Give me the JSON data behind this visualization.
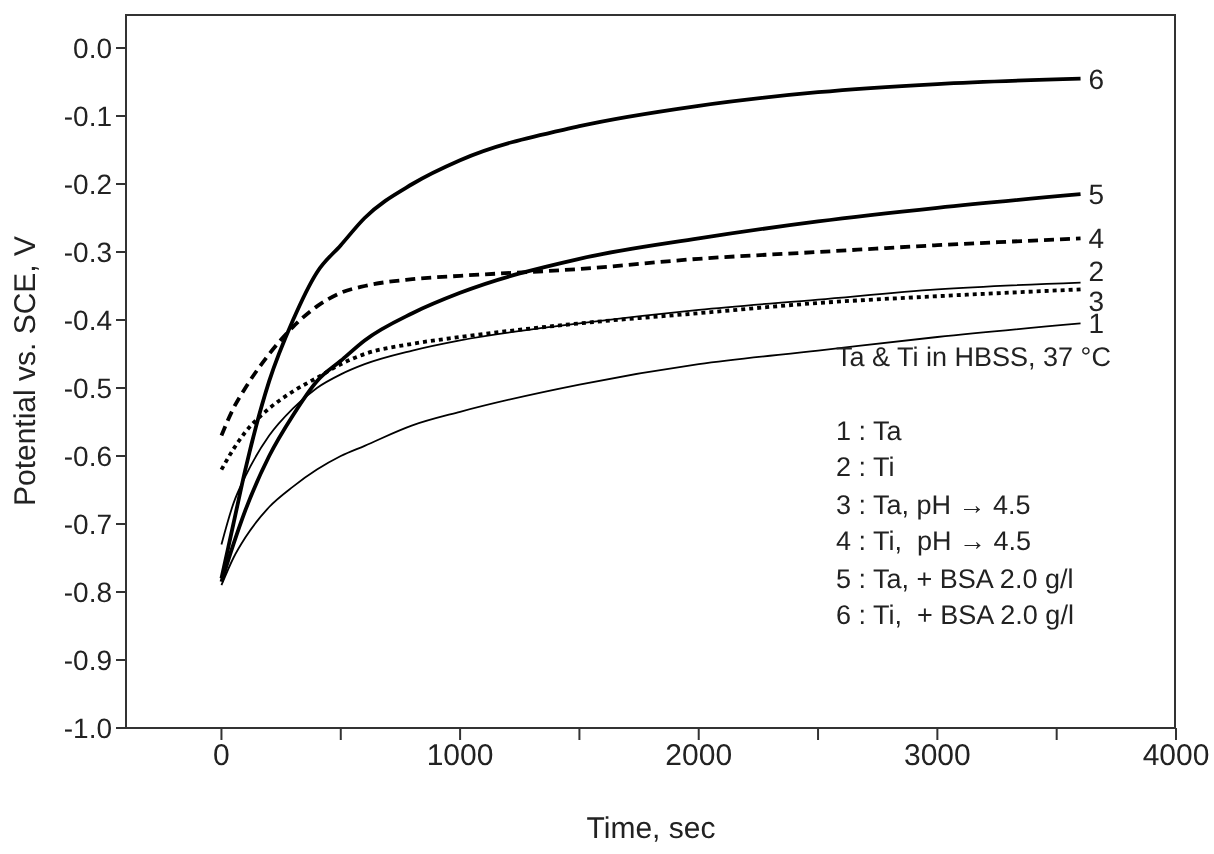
{
  "chart_data": {
    "type": "line",
    "xlabel": "Time, sec",
    "ylabel": "Potential vs. SCE, V",
    "x": [
      0,
      50,
      100,
      200,
      300,
      400,
      500,
      600,
      800,
      1000,
      1500,
      2000,
      2500,
      3000,
      3600
    ],
    "series": [
      {
        "name": "1",
        "color": "#000000",
        "line_style": "solid",
        "values": [
          -0.79,
          -0.75,
          -0.72,
          -0.675,
          -0.645,
          -0.62,
          -0.6,
          -0.585,
          -0.555,
          -0.535,
          -0.495,
          -0.465,
          -0.445,
          -0.425,
          -0.405
        ]
      },
      {
        "name": "2",
        "color": "#000000",
        "line_style": "solid",
        "values": [
          -0.73,
          -0.67,
          -0.63,
          -0.57,
          -0.53,
          -0.5,
          -0.48,
          -0.465,
          -0.445,
          -0.43,
          -0.405,
          -0.385,
          -0.37,
          -0.355,
          -0.345
        ]
      },
      {
        "name": "3",
        "color": "#000000",
        "line_style": "dotted",
        "values": [
          -0.62,
          -0.59,
          -0.565,
          -0.53,
          -0.505,
          -0.485,
          -0.465,
          -0.45,
          -0.435,
          -0.425,
          -0.405,
          -0.39,
          -0.375,
          -0.365,
          -0.355
        ]
      },
      {
        "name": "4",
        "color": "#000000",
        "line_style": "dashed",
        "values": [
          -0.57,
          -0.53,
          -0.5,
          -0.45,
          -0.41,
          -0.38,
          -0.36,
          -0.35,
          -0.34,
          -0.335,
          -0.325,
          -0.31,
          -0.3,
          -0.29,
          -0.28
        ]
      },
      {
        "name": "5",
        "color": "#000000",
        "line_style": "solid",
        "values": [
          -0.785,
          -0.73,
          -0.68,
          -0.6,
          -0.54,
          -0.49,
          -0.46,
          -0.43,
          -0.39,
          -0.36,
          -0.31,
          -0.28,
          -0.255,
          -0.235,
          -0.215
        ]
      },
      {
        "name": "6",
        "color": "#000000",
        "line_style": "solid",
        "values": [
          -0.78,
          -0.7,
          -0.62,
          -0.49,
          -0.4,
          -0.33,
          -0.29,
          -0.25,
          -0.2,
          -0.165,
          -0.115,
          -0.085,
          -0.065,
          -0.053,
          -0.045
        ]
      }
    ],
    "xlim": [
      -400,
      4000
    ],
    "xticks": [
      0,
      {
        "value": 500,
        "label": null
      },
      1000,
      {
        "value": 1500,
        "label": null
      },
      2000,
      {
        "value": 2500,
        "label": null
      },
      3000,
      {
        "value": 3500,
        "label": null
      },
      4000
    ],
    "ylim": [
      -1.0,
      0.05
    ],
    "yticks": [
      {
        "value": -1.0,
        "label": "-1.0"
      },
      {
        "value": -0.9,
        "label": "-0.9"
      },
      {
        "value": -0.8,
        "label": "-0.8"
      },
      {
        "value": -0.7,
        "label": "-0.7"
      },
      {
        "value": -0.6,
        "label": "-0.6"
      },
      {
        "value": -0.5,
        "label": "-0.5"
      },
      {
        "value": -0.4,
        "label": "-0.4"
      },
      {
        "value": -0.3,
        "label": "-0.3"
      },
      {
        "value": -0.2,
        "label": "-0.2"
      },
      {
        "value": -0.1,
        "label": "-0.1"
      },
      {
        "value": 0.0,
        "label": "0.0"
      }
    ],
    "grid": false,
    "legend": false,
    "marker": "none",
    "annotations": [
      "Ta & Ti in HBSS, 37 °C",
      "1 : Ta",
      "2 : Ti",
      "3 : Ta, pH → 4.5",
      "4 : Ti,  pH → 4.5",
      "5 : Ta, + BSA 2.0 g/l",
      "6 : Ti,  + BSA 2.0 g/l"
    ]
  }
}
